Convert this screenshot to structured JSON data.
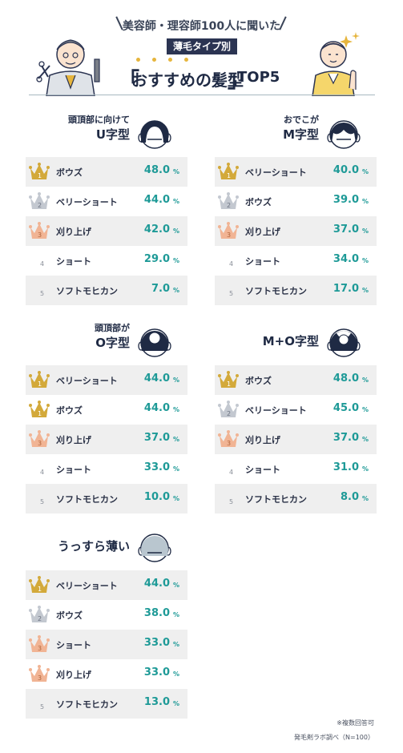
{
  "header": {
    "subtitle": "美容師・理容師100人に聞いた",
    "badge": "薄毛タイプ別",
    "bracket_open": "「",
    "title_main": "おすすめの髪型",
    "bracket_close": "」",
    "title_suffix": "TOP5"
  },
  "colors": {
    "accent": "#1e9a97",
    "navy": "#1f2a44",
    "gold": "#d3a93a",
    "silver": "#c3c8d0",
    "bronze": "#f1b494",
    "row_shade": "#efefef"
  },
  "chart_data": [
    {
      "type": "table",
      "title_line1": "頭頂部に向けて",
      "title_line2": "U字型",
      "icon": "head-u-type-icon",
      "rows": [
        {
          "rank": "1",
          "label": "ボウズ",
          "value": "48.0",
          "unit": "%"
        },
        {
          "rank": "2",
          "label": "ベリーショート",
          "value": "44.0",
          "unit": "%"
        },
        {
          "rank": "3",
          "label": "刈り上げ",
          "value": "42.0",
          "unit": "%"
        },
        {
          "rank": "4",
          "label": "ショート",
          "value": "29.0",
          "unit": "%"
        },
        {
          "rank": "5",
          "label": "ソフトモヒカン",
          "value": "7.0",
          "unit": "%"
        }
      ]
    },
    {
      "type": "table",
      "title_line1": "おでこが",
      "title_line2": "M字型",
      "icon": "head-m-type-icon",
      "rows": [
        {
          "rank": "1",
          "label": "ベリーショート",
          "value": "40.0",
          "unit": "%"
        },
        {
          "rank": "2",
          "label": "ボウズ",
          "value": "39.0",
          "unit": "%"
        },
        {
          "rank": "3",
          "label": "刈り上げ",
          "value": "37.0",
          "unit": "%"
        },
        {
          "rank": "4",
          "label": "ショート",
          "value": "34.0",
          "unit": "%"
        },
        {
          "rank": "5",
          "label": "ソフトモヒカン",
          "value": "17.0",
          "unit": "%"
        }
      ]
    },
    {
      "type": "table",
      "title_line1": "頭頂部が",
      "title_line2": "O字型",
      "icon": "head-o-type-icon",
      "rows": [
        {
          "rank": "1",
          "label": "ベリーショート",
          "value": "44.0",
          "unit": "%"
        },
        {
          "rank": "1",
          "label": "ボウズ",
          "value": "44.0",
          "unit": "%"
        },
        {
          "rank": "3",
          "label": "刈り上げ",
          "value": "37.0",
          "unit": "%"
        },
        {
          "rank": "4",
          "label": "ショート",
          "value": "33.0",
          "unit": "%"
        },
        {
          "rank": "5",
          "label": "ソフトモヒカン",
          "value": "10.0",
          "unit": "%"
        }
      ]
    },
    {
      "type": "table",
      "title_line1": "",
      "title_line2": "M+O字型",
      "icon": "head-mo-type-icon",
      "rows": [
        {
          "rank": "1",
          "label": "ボウズ",
          "value": "48.0",
          "unit": "%"
        },
        {
          "rank": "2",
          "label": "ベリーショート",
          "value": "45.0",
          "unit": "%"
        },
        {
          "rank": "3",
          "label": "刈り上げ",
          "value": "37.0",
          "unit": "%"
        },
        {
          "rank": "4",
          "label": "ショート",
          "value": "31.0",
          "unit": "%"
        },
        {
          "rank": "5",
          "label": "ソフトモヒカン",
          "value": "8.0",
          "unit": "%"
        }
      ]
    },
    {
      "type": "table",
      "title_line1": "",
      "title_line2": "うっすら薄い",
      "icon": "head-thin-type-icon",
      "rows": [
        {
          "rank": "1",
          "label": "ベリーショート",
          "value": "44.0",
          "unit": "%"
        },
        {
          "rank": "2",
          "label": "ボウズ",
          "value": "38.0",
          "unit": "%"
        },
        {
          "rank": "3",
          "label": "ショート",
          "value": "33.0",
          "unit": "%"
        },
        {
          "rank": "3",
          "label": "刈り上げ",
          "value": "33.0",
          "unit": "%"
        },
        {
          "rank": "5",
          "label": "ソフトモヒカン",
          "value": "13.0",
          "unit": "%"
        }
      ]
    }
  ],
  "footnotes": {
    "note1": "※複数回答可",
    "note2": "発毛剤ラボ調べ（N=100）"
  }
}
